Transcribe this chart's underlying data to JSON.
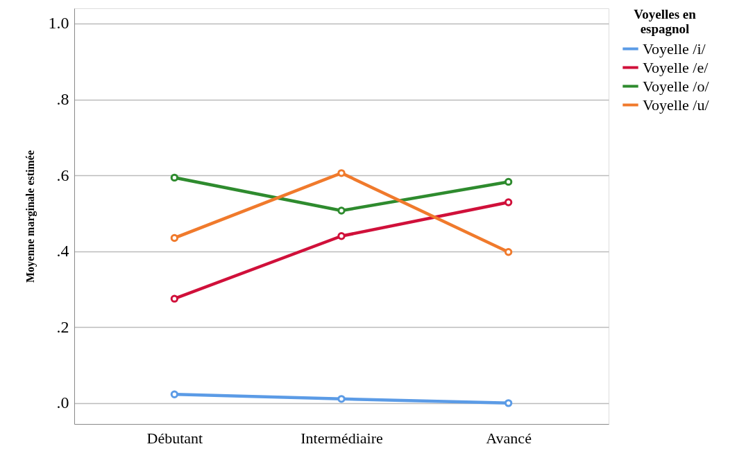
{
  "chart_data": {
    "type": "line",
    "ylabel": "Moyenne marginale estimée",
    "legend_title": "Voyelles en espagnol",
    "categories": [
      "Débutant",
      "Intermédiaire",
      "Avancé"
    ],
    "series": [
      {
        "name": "Voyelle /i/",
        "color": "#5b9be6",
        "values": [
          0.023,
          0.011,
          0.0
        ]
      },
      {
        "name": "Voyelle /e/",
        "color": "#d0103a",
        "values": [
          0.275,
          0.44,
          0.529
        ]
      },
      {
        "name": "Voyelle /o/",
        "color": "#2e8b2e",
        "values": [
          0.594,
          0.507,
          0.583
        ]
      },
      {
        "name": "Voyelle /u/",
        "color": "#f07a2c",
        "values": [
          0.435,
          0.606,
          0.398
        ]
      }
    ],
    "ylim": [
      -0.055,
      1.04
    ],
    "yticks": [
      {
        "value": 0,
        "label": ".0"
      },
      {
        "value": 0.2,
        "label": ".2"
      },
      {
        "value": 0.4,
        "label": ".4"
      },
      {
        "value": 0.6,
        "label": ".6"
      },
      {
        "value": 0.8,
        "label": ".8"
      },
      {
        "value": 1.0,
        "label": "1.0"
      }
    ],
    "grid": "y",
    "legend": "right",
    "marker": "circle",
    "line_style": "solid"
  }
}
